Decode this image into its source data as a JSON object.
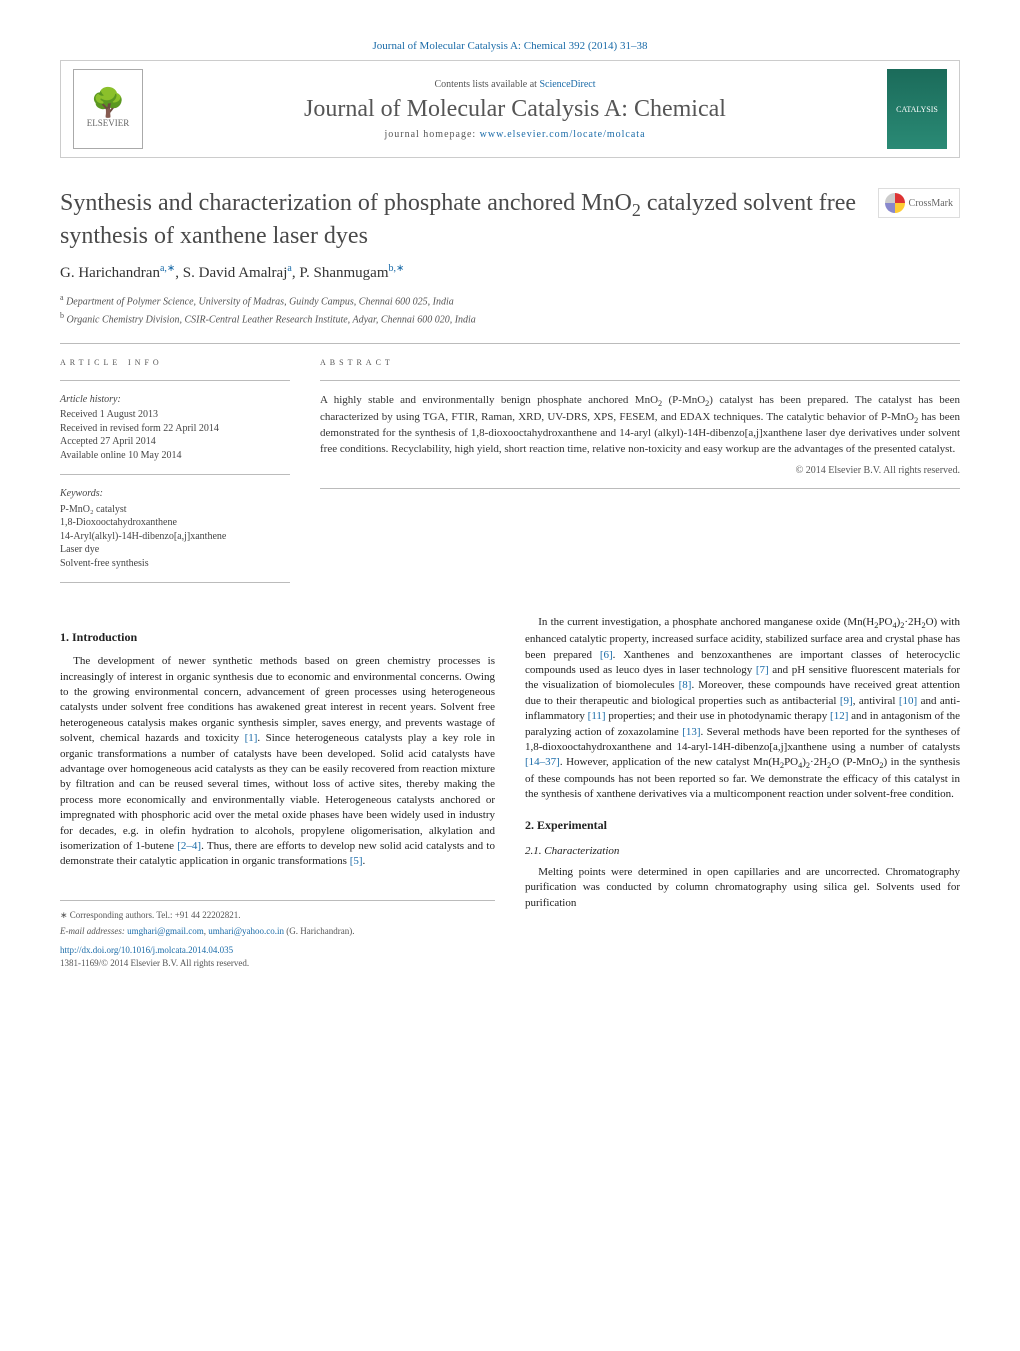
{
  "header": {
    "journal_ref_link": "Journal of Molecular Catalysis A: Chemical 392 (2014) 31–38",
    "contents_prefix": "Contents lists available at ",
    "contents_link": "ScienceDirect",
    "journal_title": "Journal of Molecular Catalysis A: Chemical",
    "homepage_prefix": "journal homepage: ",
    "homepage_link": "www.elsevier.com/locate/molcata",
    "elsevier_label": "ELSEVIER",
    "cover_label": "CATALYSIS",
    "crossmark_label": "CrossMark"
  },
  "article": {
    "title_html": "Synthesis and characterization of phosphate anchored MnO<sub>2</sub> catalyzed solvent free synthesis of xanthene laser dyes",
    "authors_html": "G. Harichandran<sup>a,∗</sup>, S. David Amalraj<sup>a</sup>, P. Shanmugam<sup>b,∗</sup>",
    "affiliations": {
      "a": "Department of Polymer Science, University of Madras, Guindy Campus, Chennai 600 025, India",
      "b": "Organic Chemistry Division, CSIR-Central Leather Research Institute, Adyar, Chennai 600 020, India"
    }
  },
  "info": {
    "heading": "article info",
    "history_label": "Article history:",
    "history": {
      "received": "Received 1 August 2013",
      "revised": "Received in revised form 22 April 2014",
      "accepted": "Accepted 27 April 2014",
      "online": "Available online 10 May 2014"
    },
    "keywords_label": "Keywords:",
    "keywords": [
      "P-MnO₂ catalyst",
      "1,8-Dioxooctahydroxanthene",
      "14-Aryl(alkyl)-14H-dibenzo[a,j]xanthene",
      "Laser dye",
      "Solvent-free synthesis"
    ]
  },
  "abstract": {
    "heading": "abstract",
    "text_html": "A highly stable and environmentally benign phosphate anchored MnO<sub>2</sub> (P-MnO<sub>2</sub>) catalyst has been prepared. The catalyst has been characterized by using TGA, FTIR, Raman, XRD, UV-DRS, XPS, FESEM, and EDAX techniques. The catalytic behavior of P-MnO<sub>2</sub> has been demonstrated for the synthesis of 1,8-dioxooctahydroxanthene and 14-aryl (alkyl)-14H-dibenzo[a,j]xanthene laser dye derivatives under solvent free conditions. Recyclability, high yield, short reaction time, relative non-toxicity and easy workup are the advantages of the presented catalyst.",
    "copyright": "© 2014 Elsevier B.V. All rights reserved."
  },
  "body": {
    "intro_head": "1. Introduction",
    "intro_p1_html": "The development of newer synthetic methods based on green chemistry processes is increasingly of interest in organic synthesis due to economic and environmental concerns. Owing to the growing environmental concern, advancement of green processes using heterogeneous catalysts under solvent free conditions has awakened great interest in recent years. Solvent free heterogeneous catalysis makes organic synthesis simpler, saves energy, and prevents wastage of solvent, chemical hazards and toxicity <span class='ref'>[1]</span>. Since heterogeneous catalysts play a key role in organic transformations a number of catalysts have been developed. Solid acid catalysts have advantage over homogeneous acid catalysts as they can be easily recovered from reaction mixture by filtration and can be reused several times, without loss of active sites, thereby making the process more economically and environmentally viable. Heterogeneous catalysts anchored or impregnated with phosphoric acid over the metal oxide phases have been widely used in industry for decades, e.g. in olefin hydration to alcohols, propylene oligomerisation, alkylation and isomerization of 1-butene <span class='ref'>[2–4]</span>. Thus, there are efforts to develop new solid acid catalysts and to demonstrate their catalytic application in organic transformations <span class='ref'>[5]</span>.",
    "intro_p2_html": "In the current investigation, a phosphate anchored manganese oxide (Mn(H<sub>2</sub>PO<sub>4</sub>)<sub>2</sub>·2H<sub>2</sub>O) with enhanced catalytic property, increased surface acidity, stabilized surface area and crystal phase has been prepared <span class='ref'>[6]</span>. Xanthenes and benzoxanthenes are important classes of heterocyclic compounds used as leuco dyes in laser technology <span class='ref'>[7]</span> and pH sensitive fluorescent materials for the visualization of biomolecules <span class='ref'>[8]</span>. Moreover, these compounds have received great attention due to their therapeutic and biological properties such as antibacterial <span class='ref'>[9]</span>, antiviral <span class='ref'>[10]</span> and anti-inflammatory <span class='ref'>[11]</span> properties; and their use in photodynamic therapy <span class='ref'>[12]</span> and in antagonism of the paralyzing action of zoxazolamine <span class='ref'>[13]</span>. Several methods have been reported for the syntheses of 1,8-dioxooctahydroxanthene and 14-aryl-14H-dibenzo[a,j]xanthene using a number of catalysts <span class='ref'>[14–37]</span>. However, application of the new catalyst Mn(H<sub>2</sub>PO<sub>4</sub>)<sub>2</sub>·2H<sub>2</sub>O (P-MnO<sub>2</sub>) in the synthesis of these compounds has not been reported so far. We demonstrate the efficacy of this catalyst in the synthesis of xanthene derivatives via a multicomponent reaction under solvent-free condition.",
    "exp_head": "2. Experimental",
    "char_head": "2.1. Characterization",
    "char_p1": "Melting points were determined in open capillaries and are uncorrected. Chromatography purification was conducted by column chromatography using silica gel. Solvents used for purification"
  },
  "footer": {
    "corr_label": "∗ Corresponding authors. Tel.: +91 44 22202821.",
    "email_label": "E-mail addresses: ",
    "email1": "umghari@gmail.com",
    "email2": "umhari@yahoo.co.in",
    "email_suffix": " (G. Harichandran).",
    "doi": "http://dx.doi.org/10.1016/j.molcata.2014.04.035",
    "issn_line": "1381-1169/© 2014 Elsevier B.V. All rights reserved."
  },
  "colors": {
    "link": "#1a6ba8",
    "text": "#333333",
    "heading_gray": "#4a4a4a",
    "rule": "#bbbbbb",
    "cover_bg_top": "#1b6b5a",
    "cover_bg_bottom": "#2a8a75"
  }
}
